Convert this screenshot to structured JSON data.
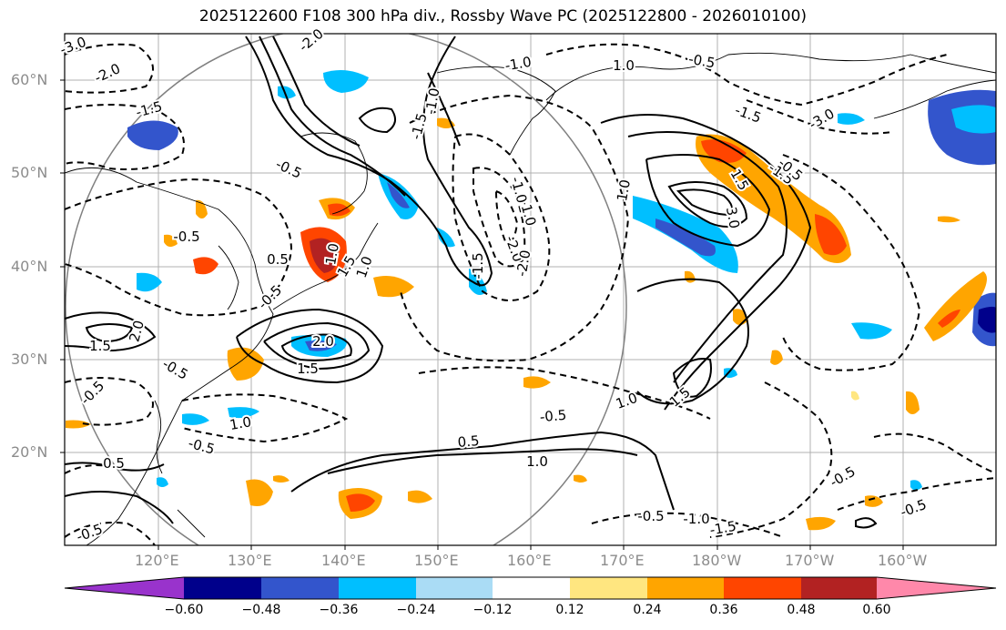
{
  "title": "2025122600 F108 300 hPa div., Rossby Wave PC (2025122800 - 2026010100)",
  "lat_labels": [
    "60°N",
    "50°N",
    "40°N",
    "30°N",
    "20°N"
  ],
  "lon_labels": [
    "120°E",
    "130°E",
    "140°E",
    "150°E",
    "160°E",
    "170°E",
    "180°W",
    "170°W",
    "160°W"
  ],
  "colorbar": {
    "colors": [
      "#9933cc",
      "#00008b",
      "#3355cc",
      "#00bfff",
      "#aadcf5",
      "#ffffff",
      "#ffe680",
      "#ffa500",
      "#ff4500",
      "#b22222",
      "#ff88aa"
    ],
    "ticks": [
      "−0.60",
      "−0.48",
      "−0.36",
      "−0.24",
      "−0.12",
      "0.12",
      "0.24",
      "0.36",
      "0.48",
      "0.60"
    ]
  },
  "contour_labels": [
    "-3.0",
    "-2.0",
    "-2.0",
    "-1.5",
    "-1.0",
    "-1.0",
    "-0.5",
    "-0.5",
    "-0.5",
    "-0.5",
    "-0.5",
    "-0.5",
    "-0.5",
    "-0.5",
    "-1.5",
    "-1.0",
    "-2.0",
    "-1.5",
    "-1.5",
    "-2.0",
    "-3.0",
    "-1.0",
    "-1.5",
    "-0.5",
    "-0.5",
    "-0.5",
    "-0.5",
    "-0.5",
    "-1.0",
    "-1.5",
    "1.0",
    "1.5",
    "2.0",
    "1.5",
    "1.0",
    "0.5",
    "1.0",
    "1.5",
    "3.0",
    "1.0",
    "1.5",
    "1.0",
    "0.5",
    "1.0",
    "1.0",
    "0.5",
    "1.5",
    "2.0"
  ]
}
